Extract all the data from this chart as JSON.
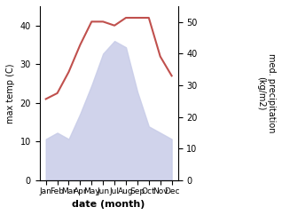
{
  "months": [
    "Jan",
    "Feb",
    "Mar",
    "Apr",
    "May",
    "Jun",
    "Jul",
    "Aug",
    "Sep",
    "Oct",
    "Nov",
    "Dec"
  ],
  "temperature": [
    21,
    22.5,
    28,
    35,
    41,
    41,
    40,
    42,
    42,
    42,
    32,
    27
  ],
  "rainfall": [
    13,
    15,
    13,
    21,
    30,
    40,
    44,
    42,
    28,
    17,
    15,
    13
  ],
  "temp_color": "#c0504d",
  "rain_color": "#c8cce8",
  "ylabel_left": "max temp (C)",
  "ylabel_right": "med. precipitation\n(kg/m2)",
  "xlabel": "date (month)",
  "ylim_left": [
    0,
    45
  ],
  "ylim_right": [
    0,
    55
  ],
  "yticks_left": [
    0,
    10,
    20,
    30,
    40
  ],
  "yticks_right": [
    0,
    10,
    20,
    30,
    40,
    50
  ],
  "background_color": "#ffffff"
}
